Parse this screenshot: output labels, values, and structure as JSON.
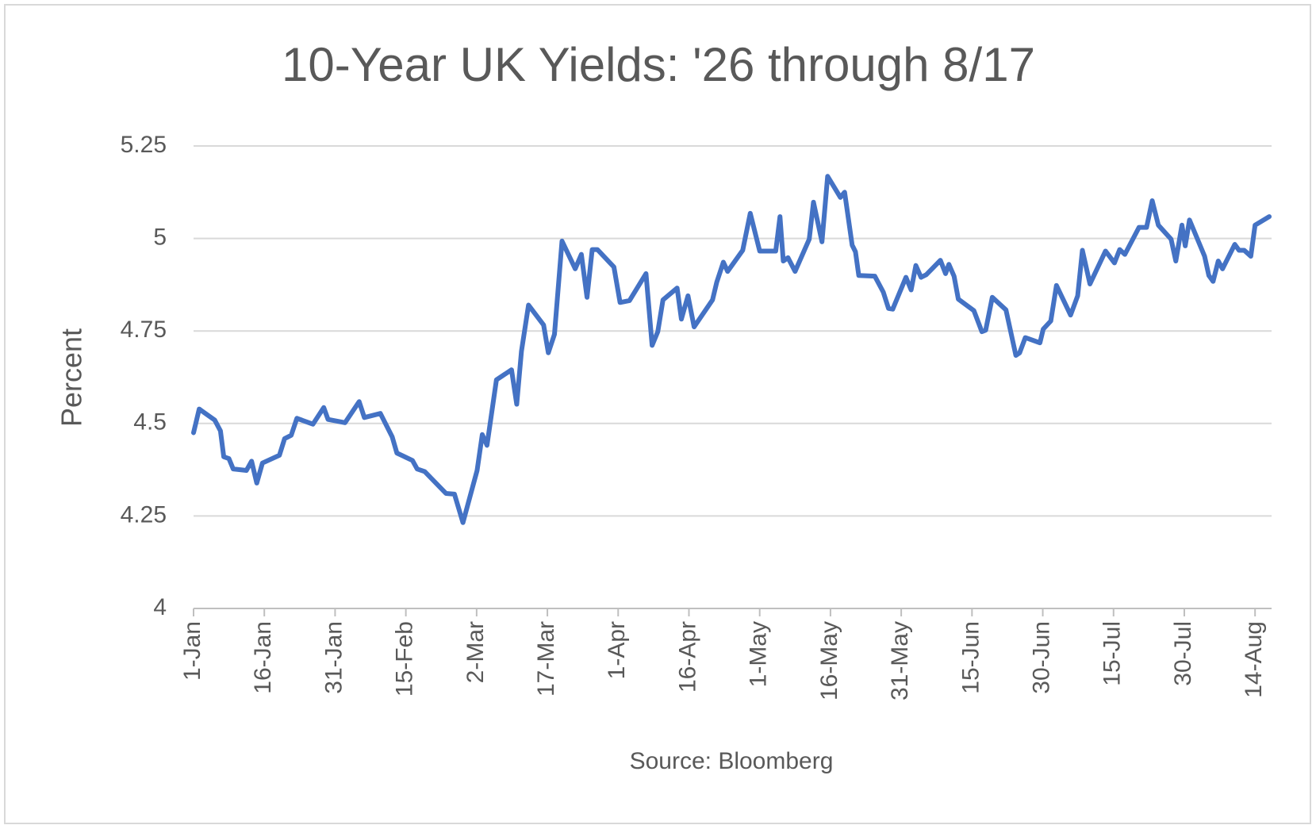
{
  "chart_data": {
    "type": "line",
    "title": "10-Year UK Yields: '26 through 8/17",
    "y_label": "Percent",
    "x_label": "Source: Bloomberg",
    "x": [
      0,
      1.2,
      4.5,
      5.7,
      6.4,
      7.5,
      8.4,
      11.2,
      12.3,
      13.4,
      14.6,
      18.2,
      19.3,
      20.7,
      21.9,
      25.3,
      27.6,
      28.5,
      32.1,
      35.1,
      36.2,
      39.6,
      42.1,
      43.1,
      46.4,
      47.4,
      49.0,
      53.5,
      55.3,
      57.1,
      60.1,
      61.2,
      62.2,
      64.2,
      67.4,
      68.5,
      69.5,
      71.0,
      74.2,
      75.2,
      76.5,
      78.1,
      80.9,
      82.2,
      83.4,
      84.5,
      85.6,
      89.1,
      90.4,
      92.4,
      95.9,
      97.2,
      98.4,
      99.5,
      102.5,
      103.4,
      104.8,
      106.1,
      110.0,
      110.9,
      112.3,
      113.2,
      116.4,
      118.0,
      120.0,
      123.4,
      124.3,
      125.0,
      126.0,
      127.5,
      130.5,
      131.4,
      133.2,
      134.4,
      137.1,
      138.0,
      139.6,
      140.3,
      141.0,
      144.4,
      146.2,
      147.3,
      148.2,
      151.0,
      152.1,
      153.1,
      154.2,
      155.3,
      158.3,
      159.4,
      160.1,
      161.2,
      162.1,
      165.4,
      167.1,
      167.9,
      169.3,
      172.2,
      174.3,
      175.1,
      176.3,
      179.4,
      180.1,
      181.7,
      182.9,
      185.9,
      187.4,
      188.4,
      190.0,
      193.3,
      195.2,
      196.3,
      197.4,
      200.4,
      202.0,
      203.2,
      204.5,
      207.2,
      208.2,
      209.5,
      210.2,
      211.1,
      214.3,
      215.2,
      216.1,
      217.2,
      218.1,
      220.7,
      221.6,
      222.7,
      224.1,
      225.0,
      228.0
    ],
    "series": [
      {
        "name": "10-Year UK Yield",
        "color": "#4472c4",
        "values": [
          4.475,
          4.539,
          4.509,
          4.48,
          4.41,
          4.405,
          4.377,
          4.373,
          4.398,
          4.339,
          4.393,
          4.414,
          4.459,
          4.468,
          4.514,
          4.498,
          4.543,
          4.511,
          4.502,
          4.559,
          4.516,
          4.527,
          4.464,
          4.42,
          4.4,
          4.377,
          4.37,
          4.311,
          4.309,
          4.232,
          4.373,
          4.47,
          4.441,
          4.618,
          4.645,
          4.552,
          4.695,
          4.82,
          4.766,
          4.691,
          4.741,
          4.993,
          4.918,
          4.957,
          4.841,
          4.97,
          4.97,
          4.923,
          4.827,
          4.832,
          4.905,
          4.711,
          4.748,
          4.834,
          4.866,
          4.782,
          4.845,
          4.761,
          4.834,
          4.882,
          4.936,
          4.911,
          4.968,
          5.068,
          4.966,
          4.966,
          5.059,
          4.939,
          4.948,
          4.911,
          4.998,
          5.098,
          4.991,
          5.168,
          5.111,
          5.125,
          4.982,
          4.964,
          4.9,
          4.898,
          4.855,
          4.811,
          4.809,
          4.895,
          4.861,
          4.927,
          4.895,
          4.902,
          4.941,
          4.905,
          4.93,
          4.898,
          4.836,
          4.805,
          4.748,
          4.752,
          4.841,
          4.807,
          4.684,
          4.691,
          4.732,
          4.718,
          4.755,
          4.777,
          4.873,
          4.793,
          4.845,
          4.968,
          4.877,
          4.966,
          4.934,
          4.97,
          4.957,
          5.03,
          5.03,
          5.102,
          5.036,
          4.998,
          4.939,
          5.036,
          4.98,
          5.05,
          4.952,
          4.9,
          4.884,
          4.939,
          4.918,
          4.984,
          4.968,
          4.968,
          4.952,
          5.036,
          5.059
        ]
      }
    ],
    "xlim": [
      0,
      228.5
    ],
    "xticks": [
      {
        "value": 0,
        "label": "1-Jan"
      },
      {
        "value": 15,
        "label": "16-Jan"
      },
      {
        "value": 30,
        "label": "31-Jan"
      },
      {
        "value": 45,
        "label": "15-Feb"
      },
      {
        "value": 60,
        "label": "2-Mar"
      },
      {
        "value": 75,
        "label": "17-Mar"
      },
      {
        "value": 90,
        "label": "1-Apr"
      },
      {
        "value": 105,
        "label": "16-Apr"
      },
      {
        "value": 120,
        "label": "1-May"
      },
      {
        "value": 135,
        "label": "16-May"
      },
      {
        "value": 150,
        "label": "31-May"
      },
      {
        "value": 165,
        "label": "15-Jun"
      },
      {
        "value": 180,
        "label": "30-Jun"
      },
      {
        "value": 195,
        "label": "15-Jul"
      },
      {
        "value": 210,
        "label": "30-Jul"
      },
      {
        "value": 225,
        "label": "14-Aug"
      }
    ],
    "ylim": [
      4,
      5.25
    ],
    "yticks": [
      4,
      4.25,
      4.5,
      4.75,
      5,
      5.25
    ],
    "grid": true
  }
}
